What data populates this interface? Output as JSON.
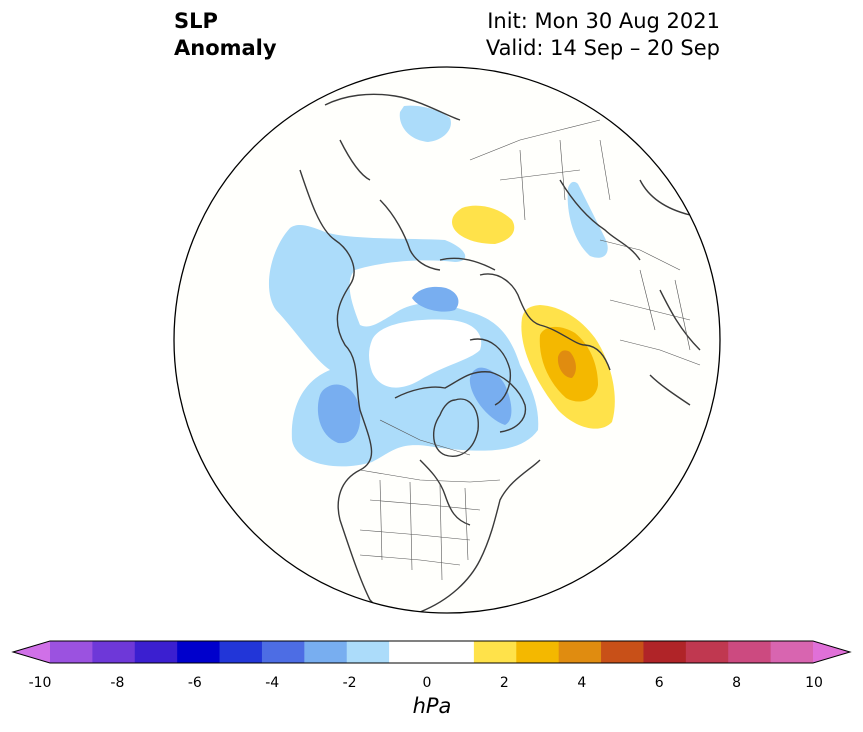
{
  "title": {
    "left_line1": "SLP",
    "left_line2": "Anomaly",
    "right_line1": "Init: Mon 30 Aug 2021",
    "right_line2": "Valid: 14 Sep – 20 Sep"
  },
  "colorbar": {
    "unit": "hPa",
    "ticks": [
      "-10",
      "-8",
      "-6",
      "-4",
      "-2",
      "0",
      "2",
      "4",
      "6",
      "8",
      "10"
    ],
    "colors": [
      "#9b52e0",
      "#6e38d8",
      "#3b1fd0",
      "#0000cc",
      "#2236d8",
      "#4d6de4",
      "#78aef0",
      "#acdcfa",
      "#ffffff",
      "#ffffff",
      "#ffe24a",
      "#f4b800",
      "#e08c10",
      "#c85018",
      "#b02428",
      "#c03850",
      "#cc4a80",
      "#d865b0"
    ],
    "extend_low_color": "#d070e8",
    "extend_high_color": "#e070d8"
  },
  "map": {
    "projection": "north-polar-stereographic",
    "anomalies": [
      {
        "region": "North Pacific / Gulf of Alaska",
        "sign": "negative",
        "peak_hPa": -3
      },
      {
        "region": "Beaufort / Canadian Arctic",
        "sign": "negative",
        "peak_hPa": -3
      },
      {
        "region": "East Siberian Sea",
        "sign": "negative",
        "peak_hPa": -3
      },
      {
        "region": "Northern Japan",
        "sign": "negative",
        "peak_hPa": -1
      },
      {
        "region": "Caspian region",
        "sign": "negative",
        "peak_hPa": -1
      },
      {
        "region": "Norway / Scandinavia",
        "sign": "positive",
        "peak_hPa": 4
      },
      {
        "region": "Central Siberia",
        "sign": "positive",
        "peak_hPa": 1
      }
    ]
  }
}
